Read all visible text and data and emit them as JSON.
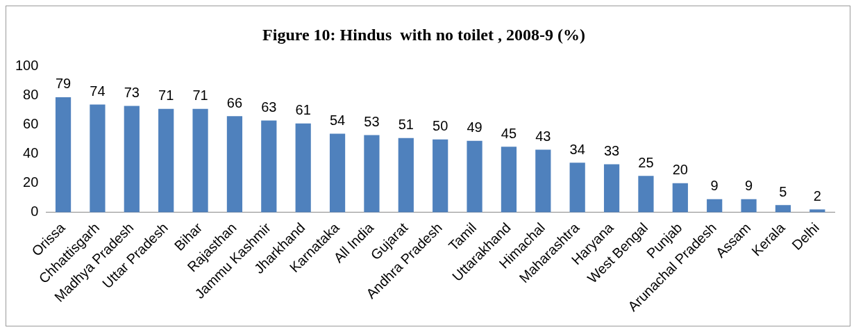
{
  "chart_data": {
    "type": "bar",
    "title": "Figure 10: Hindus  with no toilet , 2008-9 (%)",
    "categories": [
      "Orissa",
      "Chhattisgarh",
      "Madhya Pradesh",
      "Uttar Pradesh",
      "Bihar",
      "Rajasthan",
      "Jammu Kashmir",
      "Jharkhand",
      "Karnataka",
      "All India",
      "Gujarat",
      "Andhra Pradesh",
      "Tamil",
      "Uttarakhand",
      "Himachal",
      "Maharashtra",
      "Haryana",
      "West Bengal",
      "Punjab",
      "Arunachal Pradesh",
      "Assam",
      "Kerala",
      "Delhi"
    ],
    "values": [
      79,
      74,
      73,
      71,
      71,
      66,
      63,
      61,
      54,
      53,
      51,
      50,
      49,
      45,
      43,
      34,
      33,
      25,
      20,
      9,
      9,
      5,
      2
    ],
    "color": "#4f81bd",
    "ylim": [
      0,
      100
    ],
    "yticks": [
      0,
      20,
      40,
      60,
      80,
      100
    ],
    "data_labels": true,
    "grid": false,
    "legend": false
  }
}
